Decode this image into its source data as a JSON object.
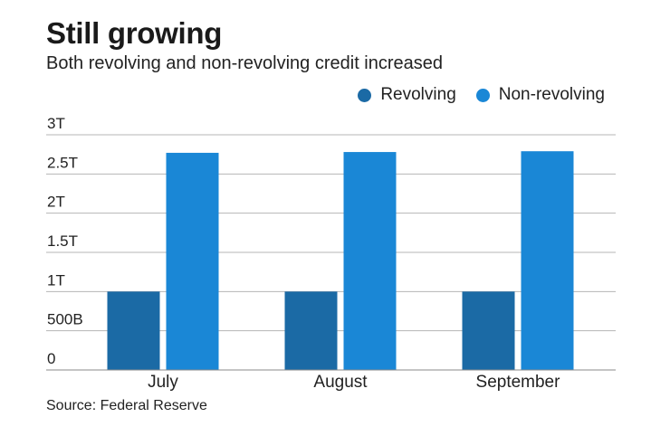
{
  "chart_data": {
    "type": "bar",
    "title": "Still growing",
    "subtitle": "Both revolving and non-revolving credit increased",
    "categories": [
      "July",
      "August",
      "September"
    ],
    "series": [
      {
        "name": "Revolving",
        "color": "#1b6aa5",
        "values": [
          1.0,
          1.0,
          1.0
        ]
      },
      {
        "name": "Non-revolving",
        "color": "#1a87d6",
        "values": [
          2.77,
          2.78,
          2.79
        ]
      }
    ],
    "y_ticks": [
      0,
      0.5,
      1,
      1.5,
      2,
      2.5,
      3
    ],
    "y_tick_labels": [
      "0",
      "500B",
      "1T",
      "1.5T",
      "2T",
      "2.5T",
      "3T"
    ],
    "ylim": [
      0,
      3
    ],
    "xlabel": "",
    "ylabel": "",
    "legend_position": "top-right",
    "grid": true,
    "source": "Source: Federal Reserve"
  }
}
